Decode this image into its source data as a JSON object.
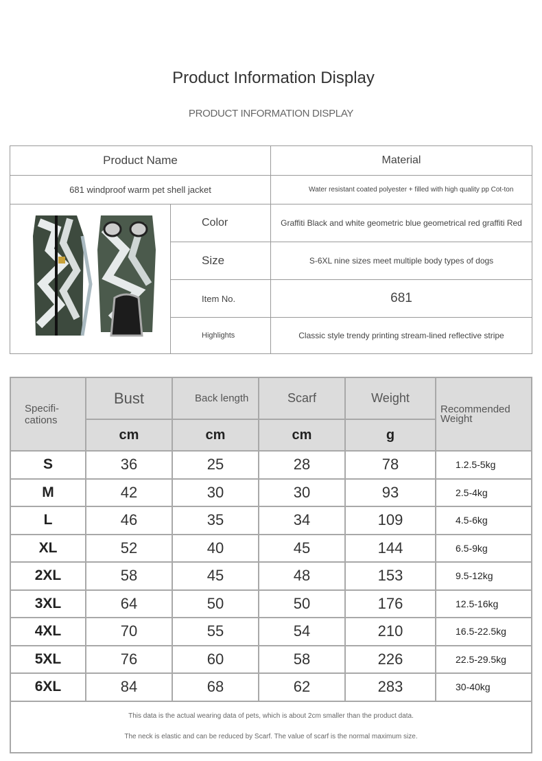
{
  "title": "Product Information Display",
  "subtitle": "PRODUCT INFORMATION DISPLAY",
  "info": {
    "name_header": "Product Name",
    "material_header": "Material",
    "name": "681 windproof warm pet shell jacket",
    "material": "Water resistant coated polyester + filled with high quality pp Cot-ton",
    "rows": [
      {
        "label": "Color",
        "value": "Graffiti Black and white geometric blue geometrical red graffiti Red"
      },
      {
        "label": "Size",
        "value": "S-6XL nine sizes meet multiple body types of dogs"
      },
      {
        "label": "Item No.",
        "value": "681"
      },
      {
        "label": "Highlights",
        "value": "Classic style trendy printing stream-lined reflective stripe"
      }
    ]
  },
  "spec": {
    "headers": {
      "spec": "Specifi-cations",
      "bust": "Bust",
      "back": "Back length",
      "scarf": "Scarf",
      "weight": "Weight",
      "rec": "Recommended Weight"
    },
    "units": [
      "cm",
      "cm",
      "cm",
      "g"
    ],
    "rows": [
      {
        "size": "S",
        "bust": "36",
        "back": "25",
        "scarf": "28",
        "weight": "78",
        "rec": "1.2.5-5kg"
      },
      {
        "size": "M",
        "bust": "42",
        "back": "30",
        "scarf": "30",
        "weight": "93",
        "rec": "2.5-4kg"
      },
      {
        "size": "L",
        "bust": "46",
        "back": "35",
        "scarf": "34",
        "weight": "109",
        "rec": "4.5-6kg"
      },
      {
        "size": "XL",
        "bust": "52",
        "back": "40",
        "scarf": "45",
        "weight": "144",
        "rec": "6.5-9kg"
      },
      {
        "size": "2XL",
        "bust": "58",
        "back": "45",
        "scarf": "48",
        "weight": "153",
        "rec": "9.5-12kg"
      },
      {
        "size": "3XL",
        "bust": "64",
        "back": "50",
        "scarf": "50",
        "weight": "176",
        "rec": "12.5-16kg"
      },
      {
        "size": "4XL",
        "bust": "70",
        "back": "55",
        "scarf": "54",
        "weight": "210",
        "rec": "16.5-22.5kg"
      },
      {
        "size": "5XL",
        "bust": "76",
        "back": "60",
        "scarf": "58",
        "weight": "226",
        "rec": "22.5-29.5kg"
      },
      {
        "size": "6XL",
        "bust": "84",
        "back": "68",
        "scarf": "62",
        "weight": "283",
        "rec": "30-40kg"
      }
    ],
    "note1": "This data is the actual wearing data of pets, which is about 2cm smaller than the product data.",
    "note2": "The neck is elastic and can be reduced by Scarf. The value of scarf is the normal maximum size."
  }
}
